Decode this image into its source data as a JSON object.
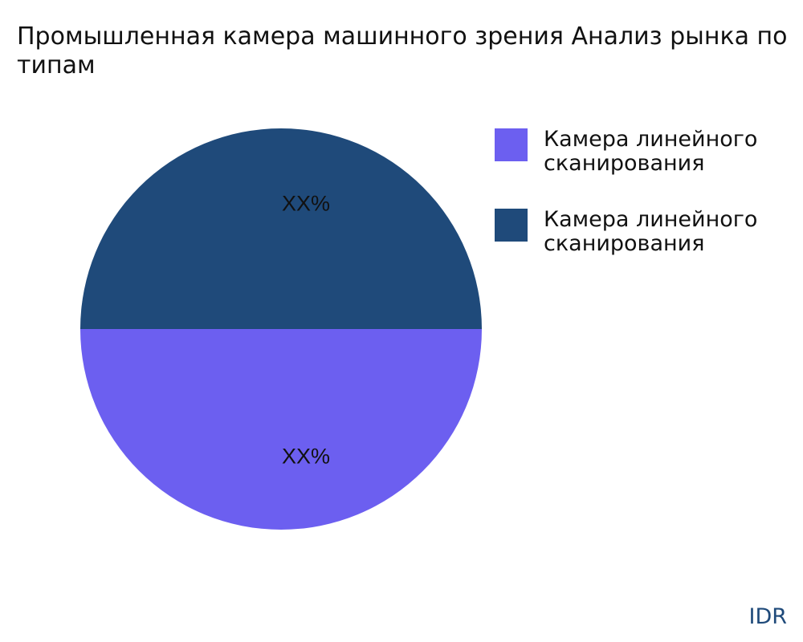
{
  "chart_data": {
    "type": "pie",
    "title_lines": [
      "Промышленная камера машинного зрения Анализ рынка по",
      "типам"
    ],
    "slices": [
      {
        "name": "Камера линейного сканирования",
        "value": 50,
        "label": "XX%",
        "color": "#6c5ff0"
      },
      {
        "name": "Камера линейного сканирования",
        "value": 50,
        "label": "XX%",
        "color": "#1f4a7a"
      }
    ],
    "legend_position": "right"
  },
  "logo": "IDR"
}
